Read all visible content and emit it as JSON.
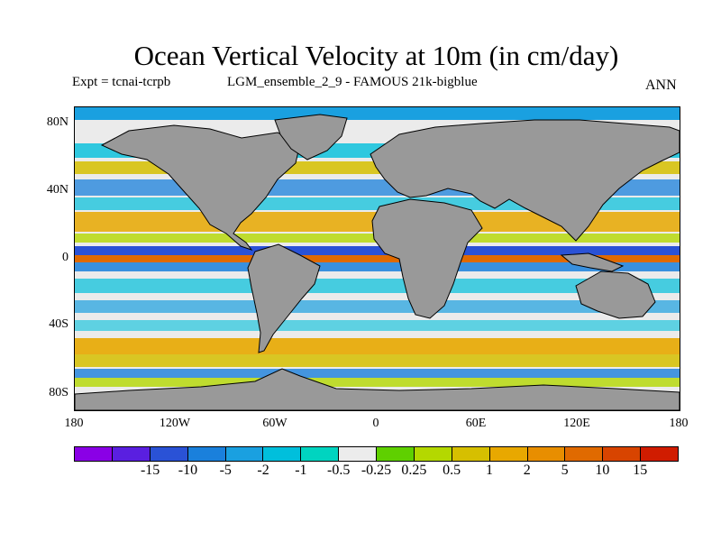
{
  "title": "Ocean Vertical Velocity at 10m (in cm/day)",
  "experiment_label": "Expt = tcnai-tcrpb",
  "run_label": "LGM_ensemble_2_9 - FAMOUS 21k-bigblue",
  "season": "ANN",
  "map": {
    "land_color": "#999999",
    "background_color": "#ebebeb",
    "lat_labels": [
      "80N",
      "40N",
      "0",
      "40S",
      "80S"
    ],
    "lon_labels": [
      "180",
      "120W",
      "60W",
      "0",
      "60E",
      "120E",
      "180"
    ]
  },
  "colorbar": {
    "colors": [
      "#8a00e6",
      "#5a1fe0",
      "#2a52d6",
      "#1a80dc",
      "#1aa0e0",
      "#00bfdc",
      "#00d4c0",
      "#ececec",
      "#5fd000",
      "#b4d800",
      "#d6bf00",
      "#e8a800",
      "#e88e00",
      "#e06a00",
      "#d84400",
      "#d01c00"
    ],
    "labels": [
      "-15",
      "-10",
      "-5",
      "-2",
      "-1",
      "-0.5",
      "-0.25",
      "0.25",
      "0.5",
      "1",
      "2",
      "5",
      "10",
      "15"
    ]
  }
}
